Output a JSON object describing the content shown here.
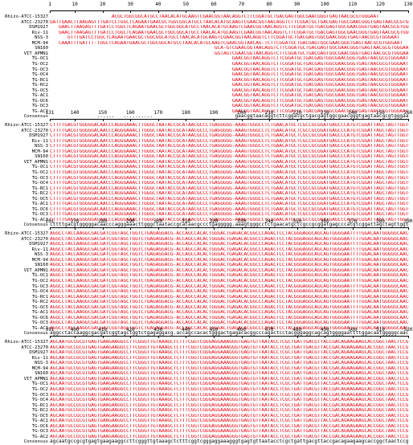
{
  "colors": {
    "consensus": "#e8000b",
    "conflict": "#111111",
    "variant": "#1d4fe0"
  },
  "blocks": [
    {
      "ruler_labels": [
        "1",
        "10",
        "20",
        "30",
        "40",
        "50",
        "60",
        "70",
        "80",
        "90",
        "100",
        "110",
        "120",
        "130"
      ],
      "rows": [
        {
          "label": "Rhizo-ATCC-15327",
          "seq": "                     ACGCTGGCGGCATGCCTAACACATGCAAGTCGAACGGTAACAGGTCTTCGGATGCTGACGAGTGGCGAACGGGTGAGTAACGCGTGGGAAT"
        },
        {
          "label": "ATCC-23270",
          "seq": "GATTGAACTTAAGAGTTTGATCCTGGCTCAGAATGAACGCTGGCGGCATGCCTAACACATGCAAGTCGAACGGTAACAGGTCTTCGGATGCTGACGAGTGGCGAACGGGTGAGTAACGCGTGGGAAT"
        },
        {
          "label": "DSM1927",
          "seq": "   GAACTTAAGAGTTTGATCCTGGCTCAGAATGAACGCTGGCGGCATGCCTAACACATGCAAGTCGAACGGTAACAGGTCTTCGGATGCTGACGAGTGGCGAACGGGTGAGTAACGCGTGGGAAT"
        },
        {
          "label": "Riv-11",
          "seq": "   GAACTTAAGAGTTTGATCCTGGCTCAGAATGAACGCTGGCGGCATGCCTAACACATGCAAGTCGAACGGTAACAGGTCTTCGGATGCTGACGAGTGGCGAACGGGTGAGTAACGCGTGGGAAT"
        },
        {
          "label": "NSS-3",
          "seq": "      GTTTGATCCTGGCTCAGAATGAACGCTGGCGGCATGCCTAACACATGCAAGTCGAACGGTAACAGGTCTTCGGATGCTGACGAGTGGCGAACGGGTGAGTAACGCGTGGGAAT"
        },
        {
          "label": "MCM-94",
          "seq": "   CAAATTTGATTT-TGGCTCAGAATGAACGCTGGCGGCATGCCTAACACATGCAAGTCGAACGGTAACAG-TCTTCGGATGCTGACGAGTGGCGAACGGGTGAGTAACGCGTGGGAAT"
        },
        {
          "label": "SN160",
          "seq": "                                                        GCA-GTCGAACGGTAACAGGTCTTCGGATGCTGACGAGTGGCGAACGGGTGAGTAACGCGTGGGAAT"
        },
        {
          "label": "VIT_APMN1",
          "seq": "                                                        GGTAGTCGAACGGTAACAGGTCTTCGGATGCTGACGAGTGGCGAACGGGTGAGTAACGCGTGGGAAT"
        },
        {
          "label": "TG-OC1",
          "seq": "                                                              GAACGGTAACAGGTCTTCGGATGCTGACGAGTGGCGAACGGGTGAGTAACGCGTGGGAAT"
        },
        {
          "label": "TG-OC2",
          "seq": "                                                              GAACGGTAACAGGTCTTCGGATGCTGACGAGTGGCGAACGGGTGAGTAACGCGTGGGAAT"
        },
        {
          "label": "TG-OC3",
          "seq": "                                                              GAACGGTAACAGGTCTTCGGATGCTGACGAGTGGCGAACGGGTGAGTAACGCGTGGGAAT"
        },
        {
          "label": "TG-OC4",
          "seq": "                                                              GAACGGTAACAGGTCTTCGGATGCTGACGAGTGGCGAACGGGTGAGTAACGCGTGGGAAT"
        },
        {
          "label": "TG-RC1",
          "seq": "                                                              GAACGGTAACAGGTCTTCGGATGCTGACGAGTGGCGAACGGGTGAGTAACGCGTGGGAAT"
        },
        {
          "label": "TG-RC2",
          "seq": "                                                              GAACGGTAACAGGTCTTCGGATGCTGACGAGTGGCGAACGGGTGAGTAACGCGTGGGAAT"
        },
        {
          "label": "TG-OC5",
          "seq": "                                                              GAACGGTAACAGGTCTTCGGATGCTGACGAGTGGCGAACGGGTGAGTAACGCGTGGGAAT"
        },
        {
          "label": "TG-AC1",
          "seq": "                                                              GAACGGTAACAGGTCTTCGGATGCTGACGAGTGGCGAACGGGTGAGTAACGCGTGGGAAT"
        },
        {
          "label": "TG-OC6",
          "seq": "                                                              GAACGGTAACAGGTCTTCGGATGCTGACGAGTGGCGAACGGGTGAGTAACGCGTGGGAAT"
        },
        {
          "label": "TG-OC3",
          "seq": "                                                              GAACGGTAACAGGTCTTCGGATGCTGACGAGTGGCGAACGGGTGAGTAACGCGTGGGAAT"
        },
        {
          "label": "TG-AC2",
          "seq": "                                                              GAACGGTAACAGGTCTTCGGATGCTGACGAGTGGCGAACGGGTGAGTAACGCGTGGGAAT"
        },
        {
          "label": "Consensus",
          "seq": "                ......   ..........                            gaacggtaacaggtcttcggatgctgacgagtggcgaacgggtgagtaacgcgtgggaat"
        }
      ]
    },
    {
      "ruler_labels": [
        "131",
        "140",
        "150",
        "160",
        "170",
        "180",
        "190",
        "200",
        "210",
        "220",
        "230",
        "240",
        "250",
        "260"
      ],
      "rows": [
        {
          "label": "Rhizo-ATCC-15327",
          "seq": "CTTTTGACGTGGGGGACAACCCAGGGAAACTTGGGCTAATACCGCATAACGCCCTGAGGGGG-AAAGTGGGCCTCTGAACATGCTCGCCGCGGATGAGCCCATGTCGGATTAGCTAGTTGGTGAGGTAA"
        },
        {
          "label": "ATCC-23270",
          "seq": "CTTTTGACGTGGGGGACAACCCAGGGAAACTTGGGCTAATACCGCATAACGCCCTGAGGGGG-AAAGTGGGCCTCTGAACATGCTCGCCGCGGATGAGCCCATGTCGGATTAGCTAGTTGGTGAGGTAA"
        },
        {
          "label": "DSM1927",
          "seq": "CTTTTGACGTGGGGGACAACCCAGGGAAACTTGGGCTAATACCGCATAACGCCCTGAGGGGG-AAAGTGGGCCTCTGAACATGCTCGCCGCGGATGAGCCCATGTCGGATTAGCTAGTTGGTGAGGTAA"
        },
        {
          "label": "Riv-11",
          "seq": "CTTTTGACGTGGGGGACAACCCAGGGAAACTTGGGCTAATACCGCATAACGCCCTGAGGGGG-AAAGTGGGCCTCTGAACATGCTCGCCGCGGATGAGCCCATGTCGGATTAGCTAGTTGGTGAGGTAA"
        },
        {
          "label": "NSS-3",
          "seq": "CTTTTGACGTGGGGGACAACCCAGGGAAACTTGGGCTAATACCGCATAACGCCCTGAGGGGG-AAAGTGGGCCTCTGAACATGCTCGCCGCGGATGAGCCCATGTCGGATTAGCTAGTTGGTGAGGTAA"
        },
        {
          "label": "MCM-94",
          "seq": "CTTTTGACGTGGGGGACAACCCAGGGAAACTTGGGCTAATACCGCATAACGCCCTGAGGGGG-AAAGTGGGCCTCTGAACATGCTCGCCGCGGATGAGCCCATGTCGGATTAGCTAGTTGGTGAGGTAA"
        },
        {
          "label": "SN160",
          "seq": "CTTTTGACGTGGGGGACAACCCAGGGAAACTTGGGCTAATACCGCATAACGCCCTGAGGGGG-AAAGTGGGCCTCTGAACATGCTCGCCGCGGATGAGCCCATGTCGGATTAGCTAGTTGGTGAGGTAA"
        },
        {
          "label": "VIT_APMN1",
          "seq": "CTTTTGACGTGGGGGACAACCCAGGGAAACTTGGGCTAATACCGCATAACGCCCTGAGGGGG-AAAGTGGGCCTCTGAACATGCTCGCCGCGGATGAGCCCATGTCGGATTAGCTAGTTGGTGAGGTAA"
        },
        {
          "label": "TG-OC1",
          "seq": "CTTTTGACGTGGGGGACAACCCAGGGAAACTTGGGCTAATACCGCATAACGCCCTGAGGGGG-AAAGTGGGCCTCTGAACATGCTCGCCGCGGATGAGCCCATGTCGGATTAGCTAGTTGGTGAGGTAA"
        },
        {
          "label": "TG-OC2",
          "seq": "CTTTTGACGTGGGGGACAACCCAGGGAAACTTGGGCTAATACCGCATAACGCCCTGAGGGGG-AAAGTGGGCCTCTGAACATGCTCGCCGCGGATGAGCCCATGTCGGATTAGCTAGTTGGTGAGGTAA"
        },
        {
          "label": "TG-OC3",
          "seq": "CTTTTGACGTGGGGGACAACCCAGGGAAACTTGGGCTAATACCGCATAACGCCCTGAGGGGG-AAAGTGGGCCTCTGAACATGCTCGCCGCGGATGAGCCCATGTCGGATTAGCTAGTTGGTGAGGTAA"
        },
        {
          "label": "TG-OC4",
          "seq": "CTTTTGACGTGGGGGACAACCCAGGGAAACTTGGGCTAATACCGCATAACGCCCTGAGGGGG-AAAGTGGGCCTCTGAACATGCTCGCCGCGGATGAGCCCATGTCGGATTAGCTAGTTGGTGAGGTAA"
        },
        {
          "label": "TG-RC1",
          "seq": "CTTTTGACGTGGGGGACAACCCAGGGAAACTTGGGCTAATACCGCATAACGCCCTGAGGGGG-AAAGTGGGCCTCTGAACATGCTCGCCGCGGATGAGCCCATGTCGGATTAGCTAGTTGGTGAGGTAA"
        },
        {
          "label": "TG-RC2",
          "seq": "CTTTTGACGTGGGGGACAACCCAGGGAAACTTGGGCTAATACCGCATAACGCCCTGAGGGGG-AAAGTGGGCCTCTGAACATGCTCGCCGCGGATGAGCCCATGTCGGATTAGCTAGTTGGTGAGGTAA"
        },
        {
          "label": "TG-OC5",
          "seq": "CTTTTGACGTGGGGGACAACCCAGGGAAACTTGGGCTAATACCGCATAACGCCCTGAGGGGG-AAAGTGGGCCTCTGAACATGCTCGCCGCGGATGAGCCCATGTCGGATTAGCTAGTTGGTGAGGTAA"
        },
        {
          "label": "TG-AC1",
          "seq": "CTTTTGACGTGGGGGACAACCCAGGGAAACTTGGGCTAATACCGCATAACGCCCTGAGGGGG-AAAGTGGGCCTCTGAACATGCTCGCCGCGGATGAGCCCATGTCGGATTAGCTAGTTGGTGAGGTAA"
        },
        {
          "label": "TG-OC6",
          "seq": "CTTTTGACGTGGGGGACAACCCAGGGAAACTTGGGCTAATACCGCATAACGCCCTGAGGGGG-AAAGTGGGCCTCTGAACATGCTCGCCGCGGATGAGCCCATGTCGGATTAGCTAGTTGGTGAGGTAA"
        },
        {
          "label": "TG-OC3",
          "seq": "CTTTTGACGTGGGGGACAACCCAGGGAAACTTGGGCTAATACCGCATAACGCCCTGAGGGGG-AAAGTGGGCCTCTGAACATGCTCGCCGCGGATGAGCCCATGTCGGATTAGCTAGTTGGTGAGGTAA"
        },
        {
          "label": "TG-AC2",
          "seq": "CTTTTGACGTGGGGGACAACCCAGGGAAACTTGGGCTAATACCGCATAACGCCCTGAGGGGG-AAAGTGGGCCTCTGAACATGCTCGCCGCGGATGAGCCCATGTCGGATTAGCTAGTTGGTGAGGTAA"
        },
        {
          "label": "Consensus",
          "seq": "cttttgacgtgggggacaacccagggaaacttgggctaataccgcataacgccctgaggggg.aaagtgggcctctgaacatgctcgccgcggatgagcccatgtcggattagctagttggtgaggtaa"
        }
      ]
    },
    {
      "ruler_labels": [
        "261",
        "270",
        "280",
        "290",
        "300",
        "310",
        "320",
        "330",
        "340",
        "350",
        "360",
        "370",
        "380",
        "390"
      ],
      "rows": [
        {
          "label": "Rhizo-ATCC-15327",
          "seq": "AGGCCTACCAAGGCGACGATCGGTAGCTGGTCTGAGAGGACG-ACCAGCCACACTGGGACTGAGACACGGCCCAGACTCCTACGGGAGGCAGCAGTGGGGAATTTTGGACAATGGGGGCAACCCTGATCCA"
        },
        {
          "label": "ATCC-23270",
          "seq": "AGGCCTACCAAGGCGACGATCGGTAGCTGGTCTGAGAGGACG-ACCAGCCACACTGGGACTGAGACACGGCCCAGACTCCTACGGGAGGCAGCAGTGGGGAATTTTGGACAATGGGGGCAACCCTGATCCA"
        },
        {
          "label": "DSM1927",
          "seq": "AGGCCTACCAAGGCGACGATCGGTAGCTGGTCTGAGAGGACG-ACCAGCCACACTGGGACTGAGACACGGCCCAGACTCCTACGGGAGGCAGCAGTGGGGAATTTTGGACAATGGGGGCAACCCTGATCCA"
        },
        {
          "label": "Riv-11",
          "seq": "AGGCCTACCAAGGCGACGATCGGTAGCTGGTCTGAGAGGACG-ACCAGCCACACTGGGACTGAGACACGGCCCAGACTCCTACGGGAGGCAGCAGTGGGGAATTTTGGACAATGGGGGCAACCCTGATCCA"
        },
        {
          "label": "NSS-3",
          "seq": "AGGCCTACCAAGGCGACGATCGGTAGCTGGTCTGAGAGGACG-ACCAGCCACACTGGGACTGAGACACGGCCCAGACTCCTACGGGAGGCAGCAGTGGGGAATTTTGGACAATGGGGGCAACCCTGATCCA"
        },
        {
          "label": "MCM-94",
          "seq": "AGGCCTACCAAGGCGACGATCGGTAGCTGGTCTGAGAGGACG-ACCAGCCACACTGGGACTGAGACACGGCCCAGACTCCTACGGGAGGCAGCAGTGGGGAATTTTGGACAATGGGGGCAACCCTGATCCA"
        },
        {
          "label": "SN160",
          "seq": "AGGCCTACCAAGGCGACGATCGGTAGCTGGTCTGAGAGGACG-ACCAGCCACACTGGGACTGAGACACGGCCCAGACTCCTACGGGAGGCAGCAGTGGGGAATTTTGGACAATGGGGGCAACCCTGATCCA"
        },
        {
          "label": "VIT_APMN1",
          "seq": "AGGCCTACCAAGGCGACGATCGGTAGCTGGTCTGAGAGGACG-ACCAGCCACACTGGGACTGAGACACGGCCCAGACTCCTACGGGAGGCAGCAGTGGGGAATTTTGGACAATGGGGGCAACCCTGATCCA"
        },
        {
          "label": "TG-OC1",
          "seq": "AGGCCTACCAAGGCGACGATCGGTAGCTGGTCTGAGAGGACG-ACCAGCCACACTGGGACTGAGACACGGCCCAGACTCCTACGGGAGGCAGCAGTGGGGAATTTTGGACAATGGGGGCAACCCTGATCCA"
        },
        {
          "label": "TG-OC2",
          "seq": "AGGCCTACCAAGGCGACGATCGGTAGCTGGTCTGAGAGGACG-ACCAGCCACACTGGGACTGAGACACGGCCCAGACTCCTACGGGAGGCAGCAGTGGGGAATTTTGGACAATGGGGGCAACCCTGATCCA"
        },
        {
          "label": "TG-OC3",
          "seq": "AGGCCTACCAAGGCGACGATCGGTAGCTGGTCTGAGAGGACG-ACCAGCCACACTGGGACTGAGACACGGCCCAGACTCCTACGGGAGGCAGCAGTGGGGAATTTTGGACAATGGGGGCAACCCTGATCCA"
        },
        {
          "label": "TG-OC4",
          "seq": "AGGCCTACCAAGGCGACGATCGGTAGCTGGTCTGAGAGGACG-ACCAGCCACACTGGGACTGAGACACGGCCCAGACTCCTACGGGAGGCAGCAGTGGGGAATTTTGGACAATGGGGGCAACCCTGATCCA"
        },
        {
          "label": "TG-RC1",
          "seq": "AGGCCTACCAAGGCGACGATCGGTAGCTGGTCTGAGAGGACG-ACCAGCCACACTGGGACTGAGACACGGCCCAGACTCCTACGGGAGGCAGCAGTGGGGAATTTTGGACAATGGGGGCAACCCTGATCCA"
        },
        {
          "label": "TG-RC2",
          "seq": "AGGCCTACCAAGGCGACGATCGGTAGCTGGTCTGAGAGGACG-ACCAGCCACACTGGGACTGAGACACGGCCCAGACTCCTACGGGAGGCAGCAGTGGGGAATTTTGGACAATGGGGGCAACCCTGATCCA"
        },
        {
          "label": "TG-OC5",
          "seq": "AGGCCTACCAAGGCGACGATCGGTAGCTGGTCTGAGAGGACG-ACCAGCCACACTGGGACTGAGACACGGCCCAGACTCCTACGGGAGGCAGCAGTGGGGAATTTTGGACAATGGGGGCAACCCTGATCCA"
        },
        {
          "label": "TG-AC1",
          "seq": "AGGCCTACCAAGGCGACGATCGGTAGCTGGTCTGAGAGGACG-ACCAGCCACACTGGGACTGAGACACGGCCCAGACTCCTACGGGAGGCAGCAGTGGGGAATTTTGGACAATGGGGGCAACCCTGATCCA"
        },
        {
          "label": "TG-OC6",
          "seq": "AGGCCTACCAAGGCGACGATCGGTAGCTGGTCTGAGAGGACG-ACCAGCCACACTGGGACTGAGACACGGCCCAGACTCCTACGGGAGGCAGCAGTGGGGAATTTTGGACAATGGGGGCAACCCTGATCCA"
        },
        {
          "label": "TG-OC3",
          "seq": "AGGCCTACCAAGGCGACGATCGGTAGCTGGTCTGAGAGGACG-ACCAGCCACACTGGGACTGAGACACGGCCCAGACTCCTACGGGAGGCAGCAGTGGGGAATTTTGGACAATGGGGGCAACCCTGATCCA"
        },
        {
          "label": "TG-AC2",
          "seq": "AGGCCTACCAAGGCGACGATCGGTAGCTGGTCTGAGAGGACG-ACCAGCCACACTGGGACTGAGACACGGCCCAGACTCCTACGGGAGGCAGCAGTGGGGAATTTTGGACAATGGGGGCAACCCTGATCCA"
        },
        {
          "label": "Consensus",
          "seq": "aggcctaccaaggcgacgatcggtagctggtctgagaggacg.accagccacactgggactgagacacggcccagactcctacgggaggcagcagtggggaattttggacaatgggggcaaccctgatcca"
        }
      ]
    },
    {
      "ruler_labels": [
        "391",
        "400",
        "410",
        "420",
        "430",
        "440",
        "450",
        "460",
        "470",
        "480",
        "490",
        "500",
        "510",
        "520"
      ],
      "rows": [
        {
          "label": "Rhizo-ATCC-15327",
          "seq": "AGCAATGCCGCGTGAGTGAAGAAGGCCTTCGGGTTGTAAAGCTCTTTCGGTCGGGAGGAAAGGGTGAGTGTTAATACCTCGCTGATTGACGTTACCGACAGAAGAAGCACCGGCTAACTCCGTGCCAGC"
        },
        {
          "label": "ATCC-23270",
          "seq": "AGCAATGCCGCGTGAGTGAAGAAGGCCTTCGGGTTGTAAAGCTCTTTCGGTCGGGAGGAAAGGGTGAGTGTTAATACCTCGCTGATTGACGTTACCGACAGAAGAAGCACCGGCTAACTCCGTGCCAGC"
        },
        {
          "label": "DSM1927",
          "seq": "AGCAATGCCGCGTGAGTGAAGAAGGCCTTCGGGTTGTAAAGCTCTTTCGGTCGGGAGGAAAGGGTGAGTGTTAATACCTCGCTGATTGACGTTACCGACAGAAGAAGCACCGGCTAACTCCGTGCCAGC"
        },
        {
          "label": "Riv-11",
          "seq": "AGCAATGCCGCGTGAGTGAAGAAGGCCTTCGGGTTGTAAAGCTCTTTCGGTCGGGAGGAAAGGGTGAGTGTTAATACCTCGCTGATTGACGTTACCGACAGAAGAAGCACCGGCTAACTCCGTGCCAGC"
        },
        {
          "label": "NSS-3",
          "seq": "AGCAATGCCGCGTGAGTGAAGAAGGCCTTCGGGTTGTAAAGCTCTTTCGGTCGGGAGGAAAGGGTGAGTGTTAATACCTCGCTGATTGACGTTACCGACAGAAGAAGCACCGGCTAACTCCGTGCCAGC"
        },
        {
          "label": "MCM-94",
          "seq": "AGCAATGCCGCGTGAGTGAAGAAGGCCTTCGGGTTGTAAAGCTCTTTCGGTCGGGAGGAAAGGGTGAGTGTTAATACCTCGCTGATTGACGTTACCGACAGAAGAAGCACCGGCTAACTCCGTGCCAGC"
        },
        {
          "label": "SN160",
          "seq": "AGCAATGCCGCGTGAGTGAAGAAGGCCTTCGGGTTGTAAAGCTCTTTCGGTCGGGAGGAAAGGGTGAGTGTTAATACCTCGCTGATTGACGTTACCGACAGAAGAAGCACCGGCTAACTCCGTGCCAGC"
        },
        {
          "label": "VIT_APMN1",
          "seq": "AGCAATGCCGCGTGAGTGAAGAAGGCCTTCGGGTTGTAAAGCTCTTTCGGTCGGGAGGAAAGGGTGAGTGTTAATACCTCGCTGATTGACGTTACCGACAGAAGAAGCACCGGCTAACTCCGTGCCAGC"
        },
        {
          "label": "TG-OC1",
          "seq": "AGCAATGCCGCGTGAGTGAAGAAGGCCTTCGGGTTGTAAAGCTCTTTCGGTCGGGAGGAAAGGGTGAGTGTTAATACCTCGCTGATTGACGTTACCGACAGAAGAAGCACCGGCTAACTCCGT     "
        },
        {
          "label": "TG-OC2",
          "seq": "AGCAATGCCGCGTGAGTGAAGAAGGCCTTCGGGTTGTAAAGCTCTTTCGGTCGGGAGGAAAGGGTGAGTGTTAATACCTCGCTGATTGACGTTACCGACAGAAGAAGCACCGGCTAACTCCGT     "
        },
        {
          "label": "TG-OC3",
          "seq": "AGCAATGCCGCGTGAGTGAAGAAGGCCTTCGGGTTGTAAAGCTCTTTCGGTCGGGAGGAAAGGGTGAGTGTTAATACCTCGCTGATTGACGTTACCGACAGAAGAAGCACCGGCTAACTCCGT     "
        },
        {
          "label": "TG-OC4",
          "seq": "AGCAATGCCGCGTGAGTGAAGAAGGCCTTCGGGTTGTAAAGCTCTTTCGGTCGGGAGGAAAGGGTGAGTGTTAATACCTCGCTGATTGACGTTACCGACAGAAGAAGCACCGGCTAACTCCGT     "
        },
        {
          "label": "TG-RC1",
          "seq": "AGCAATGCCGCGTGAGTGAAGAAGGCCTTCGGGTTGTAAAGCTCTTTCGGTCGGGAGGAAAGGGTGAGTGTTAATACCTCGCTGATTGACGTTACCGACAGAAGAAGCACCGGCTAACTCCGT     "
        },
        {
          "label": "TG-RC2",
          "seq": "AGCAATGCCGCGTGAGTGAAGAAGGCCTTCGGGTTGTAAAGCTCTTTCGGTCGGGAGGAAAGGGTGAGTGTTAATACCTCGCTGATTGACGTTACCGACAGAAGAAGCACCGGCTAACTCCGT     "
        },
        {
          "label": "TG-OC5",
          "seq": "AGCAATGCCGCGTGAGTGAAGAAGGCCTTCGGGTTGTAAAGCTCTTTCGGTCGGGAGGAAAGGGTGAGTGTTAATACCTCGCTGATTGACGTTACCGACAGAAGAAGCACCGGCTAACTCCGT     "
        },
        {
          "label": "TG-AC1",
          "seq": "AGCAATGCCGCGTGAGTGAAGAAGGCCTTCGGGTTGTAAAGCTCTTTCGGTCGGGAGGAAAGGGTGAGTGTTAATACCTCGCTGATTGACGTTACCGACAGAAGAAGCACCGGCTAACTCCGT     "
        },
        {
          "label": "TG-OC6",
          "seq": "AGCAATGCCGCGTGAGTGAAGAAGGCCTTCGGGTTGTAAAGCTCTTTCGGTCGGGAGGAAAGGGTGAGTGTTAATACCTCGCTGATTGACGTTACCGACAGAAGAAGCACCGGCTAACTCCGT     "
        },
        {
          "label": "TG-OC3",
          "seq": "AGCAATGCCGCGTGAGTGAAGAAGGCCTTCGGGTTGTAAAGCTCTTTCGGTCGGGAGGAAAGGGTGAGTGTTAATACCTCGCTGATTGACGTTACCGACAGAAGAAGCACCGGCTAACTCCGT     "
        },
        {
          "label": "TG-AC2",
          "seq": "AGCAATGCCGCGTGAGTGAAGAAGGCCTTCGGGTTGTAAAGCTCTTTCGGTCGGGAGGAAAGGGTGAGTGTTAATACCTCGCTGATTGACGTTACCGACAGAAGAAGCACCGGCTAACTCCGT     "
        },
        {
          "label": "Consensus",
          "seq": "agcaatgccgcgtgagtgaagaaggccttcgggttgtaaagctctttcggtcgggaggaaagggtgagtgttaatacctcgctgattgacgttaccgacagaagaagcaccggctaactccgt....."
        }
      ]
    }
  ]
}
